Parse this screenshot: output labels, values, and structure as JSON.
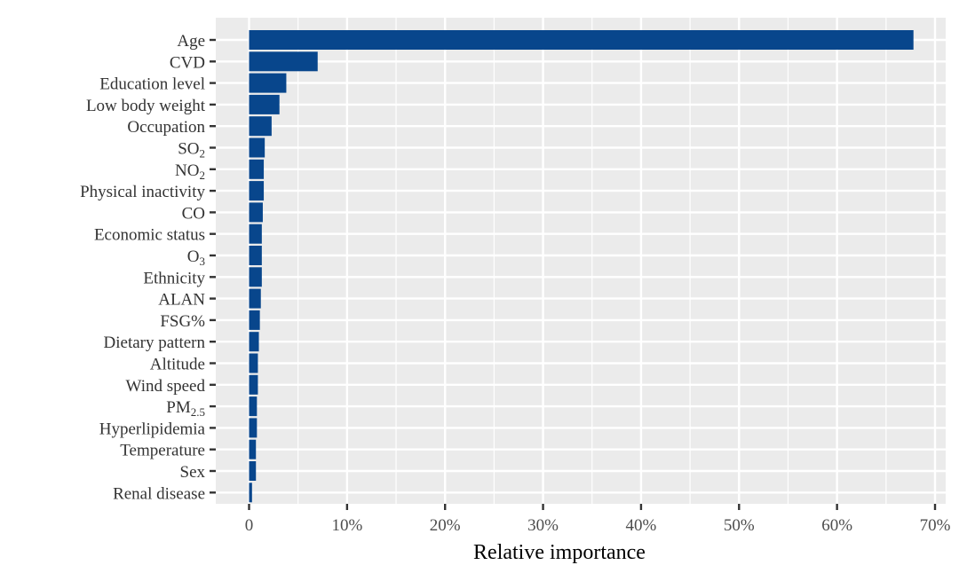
{
  "chart_data": {
    "type": "bar",
    "orientation": "horizontal",
    "title": "",
    "xlabel": "Relative importance",
    "ylabel": "",
    "xlim": [
      0,
      70
    ],
    "x_ticks": [
      0,
      10,
      20,
      30,
      40,
      50,
      60,
      70
    ],
    "x_tick_labels": [
      "0",
      "10%",
      "20%",
      "30%",
      "40%",
      "50%",
      "60%",
      "70%"
    ],
    "grid": true,
    "bar_color": "#08468c",
    "panel_color": "#ebebeb",
    "categories": [
      {
        "label": "Age"
      },
      {
        "label": "CVD"
      },
      {
        "label": "Education level"
      },
      {
        "label": "Low body weight"
      },
      {
        "label": "Occupation"
      },
      {
        "label": "SO",
        "sub": "2"
      },
      {
        "label": "NO",
        "sub": "2"
      },
      {
        "label": "Physical inactivity"
      },
      {
        "label": "CO"
      },
      {
        "label": "Economic status"
      },
      {
        "label": "O",
        "sub": "3"
      },
      {
        "label": "Ethnicity"
      },
      {
        "label": "ALAN"
      },
      {
        "label": "FSG%"
      },
      {
        "label": "Dietary pattern"
      },
      {
        "label": "Altitude"
      },
      {
        "label": "Wind speed"
      },
      {
        "label": "PM",
        "sub": "2.5"
      },
      {
        "label": "Hyperlipidemia"
      },
      {
        "label": "Temperature"
      },
      {
        "label": "Sex"
      },
      {
        "label": "Renal disease"
      }
    ],
    "values": [
      67.8,
      7.0,
      3.8,
      3.1,
      2.3,
      1.6,
      1.5,
      1.5,
      1.4,
      1.3,
      1.3,
      1.3,
      1.2,
      1.1,
      1.0,
      0.9,
      0.9,
      0.8,
      0.8,
      0.7,
      0.7,
      0.3
    ]
  }
}
